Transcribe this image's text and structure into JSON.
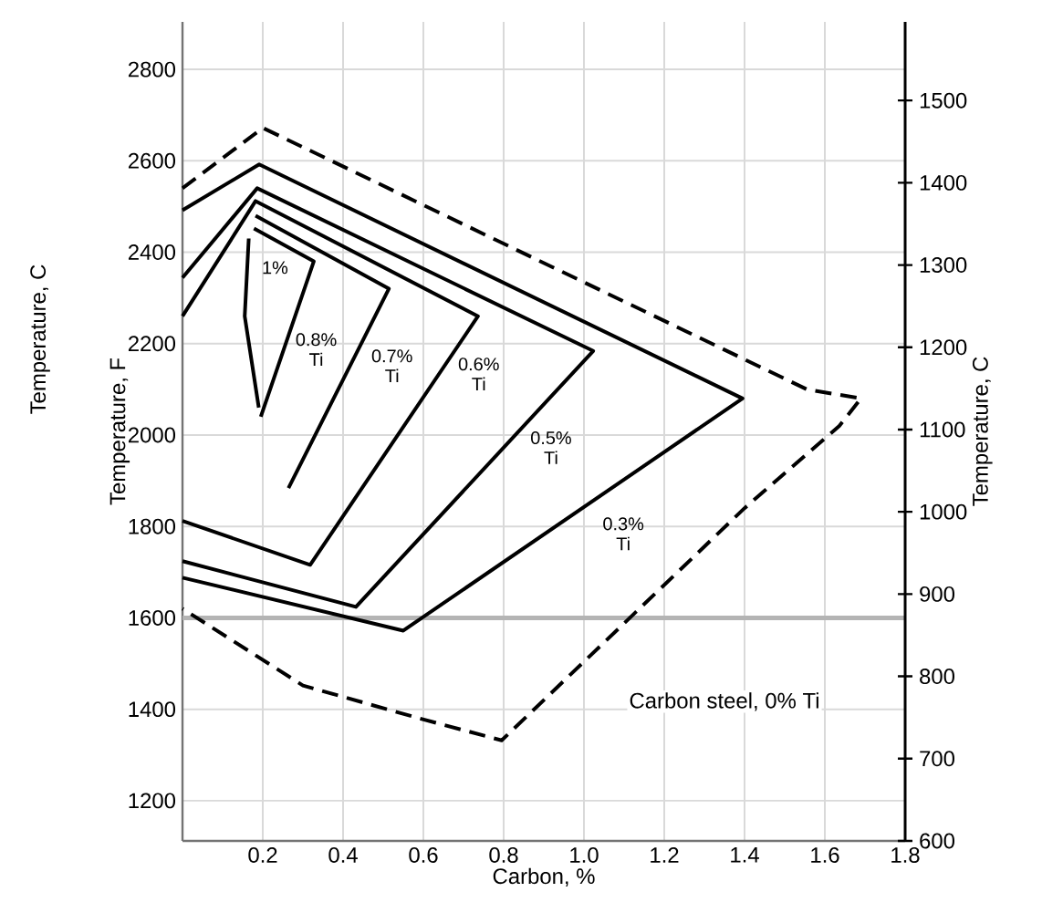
{
  "chart_data": {
    "type": "line",
    "xlabel": "Carbon, %",
    "ylabel": "Temperature, F",
    "y2label": "Temperature, C",
    "xlim": [
      0,
      1.8
    ],
    "xticks": [
      0.2,
      0.4,
      0.6,
      0.8,
      {
        "value": 1,
        "label": "1.0"
      },
      1.2,
      1.4,
      1.6,
      1.8
    ],
    "ylim": [
      1112,
      2904
    ],
    "yticks": [
      1200,
      1400,
      1600,
      1800,
      2000,
      2200,
      2400,
      2600,
      2800
    ],
    "y2lim": [
      600,
      1595.6
    ],
    "y2ticks": [
      600,
      700,
      800,
      900,
      1000,
      1100,
      1200,
      1300,
      1400,
      1500
    ],
    "grid": true,
    "marker": "none",
    "series": [
      {
        "color": "#000000",
        "line_style": "solid",
        "x": [
          0.165,
          0.155,
          0.19
        ],
        "values": [
          2430,
          2260,
          2060
        ]
      },
      {
        "color": "#000000",
        "line_style": "solid",
        "x": [
          0.178,
          0.327,
          0.195
        ],
        "values": [
          2452,
          2380,
          2040
        ]
      },
      {
        "color": "#000000",
        "line_style": "solid",
        "x": [
          0.182,
          0.514,
          0.264
        ],
        "values": [
          2480,
          2320,
          1884
        ]
      },
      {
        "color": "#000000",
        "line_style": "solid",
        "x": [
          0,
          0.182,
          0.736,
          0.318,
          0
        ],
        "values": [
          2260,
          2512,
          2260,
          1716,
          1812
        ]
      },
      {
        "color": "#000000",
        "line_style": "solid",
        "x": [
          0,
          0.186,
          1.023,
          0.432,
          0
        ],
        "values": [
          2344,
          2540,
          2184,
          1624,
          1724
        ]
      },
      {
        "color": "#000000",
        "line_style": "solid",
        "x": [
          0,
          0.191,
          1.395,
          0.55,
          0
        ],
        "values": [
          2492,
          2592,
          2080,
          1572,
          1688
        ]
      },
      {
        "color": "#000000",
        "line_style": "dashed",
        "x": [
          0,
          0.2,
          1.555,
          1.69,
          1.636,
          1.4,
          0.795,
          0.59,
          0.3,
          0
        ],
        "values": [
          2540,
          2672,
          2100,
          2080,
          2020,
          1840,
          1332,
          1380,
          1452,
          1620
        ]
      }
    ],
    "ref_lines": [
      {
        "axis": "y",
        "value": 1600,
        "color": "#b4b4b4"
      }
    ],
    "annotations": [
      "1%",
      "0.8% Ti",
      "0.7% Ti",
      "0.6% Ti",
      "0.5% Ti",
      "0.3% Ti",
      "Carbon steel, 0% Ti",
      "Temperature, C"
    ]
  }
}
